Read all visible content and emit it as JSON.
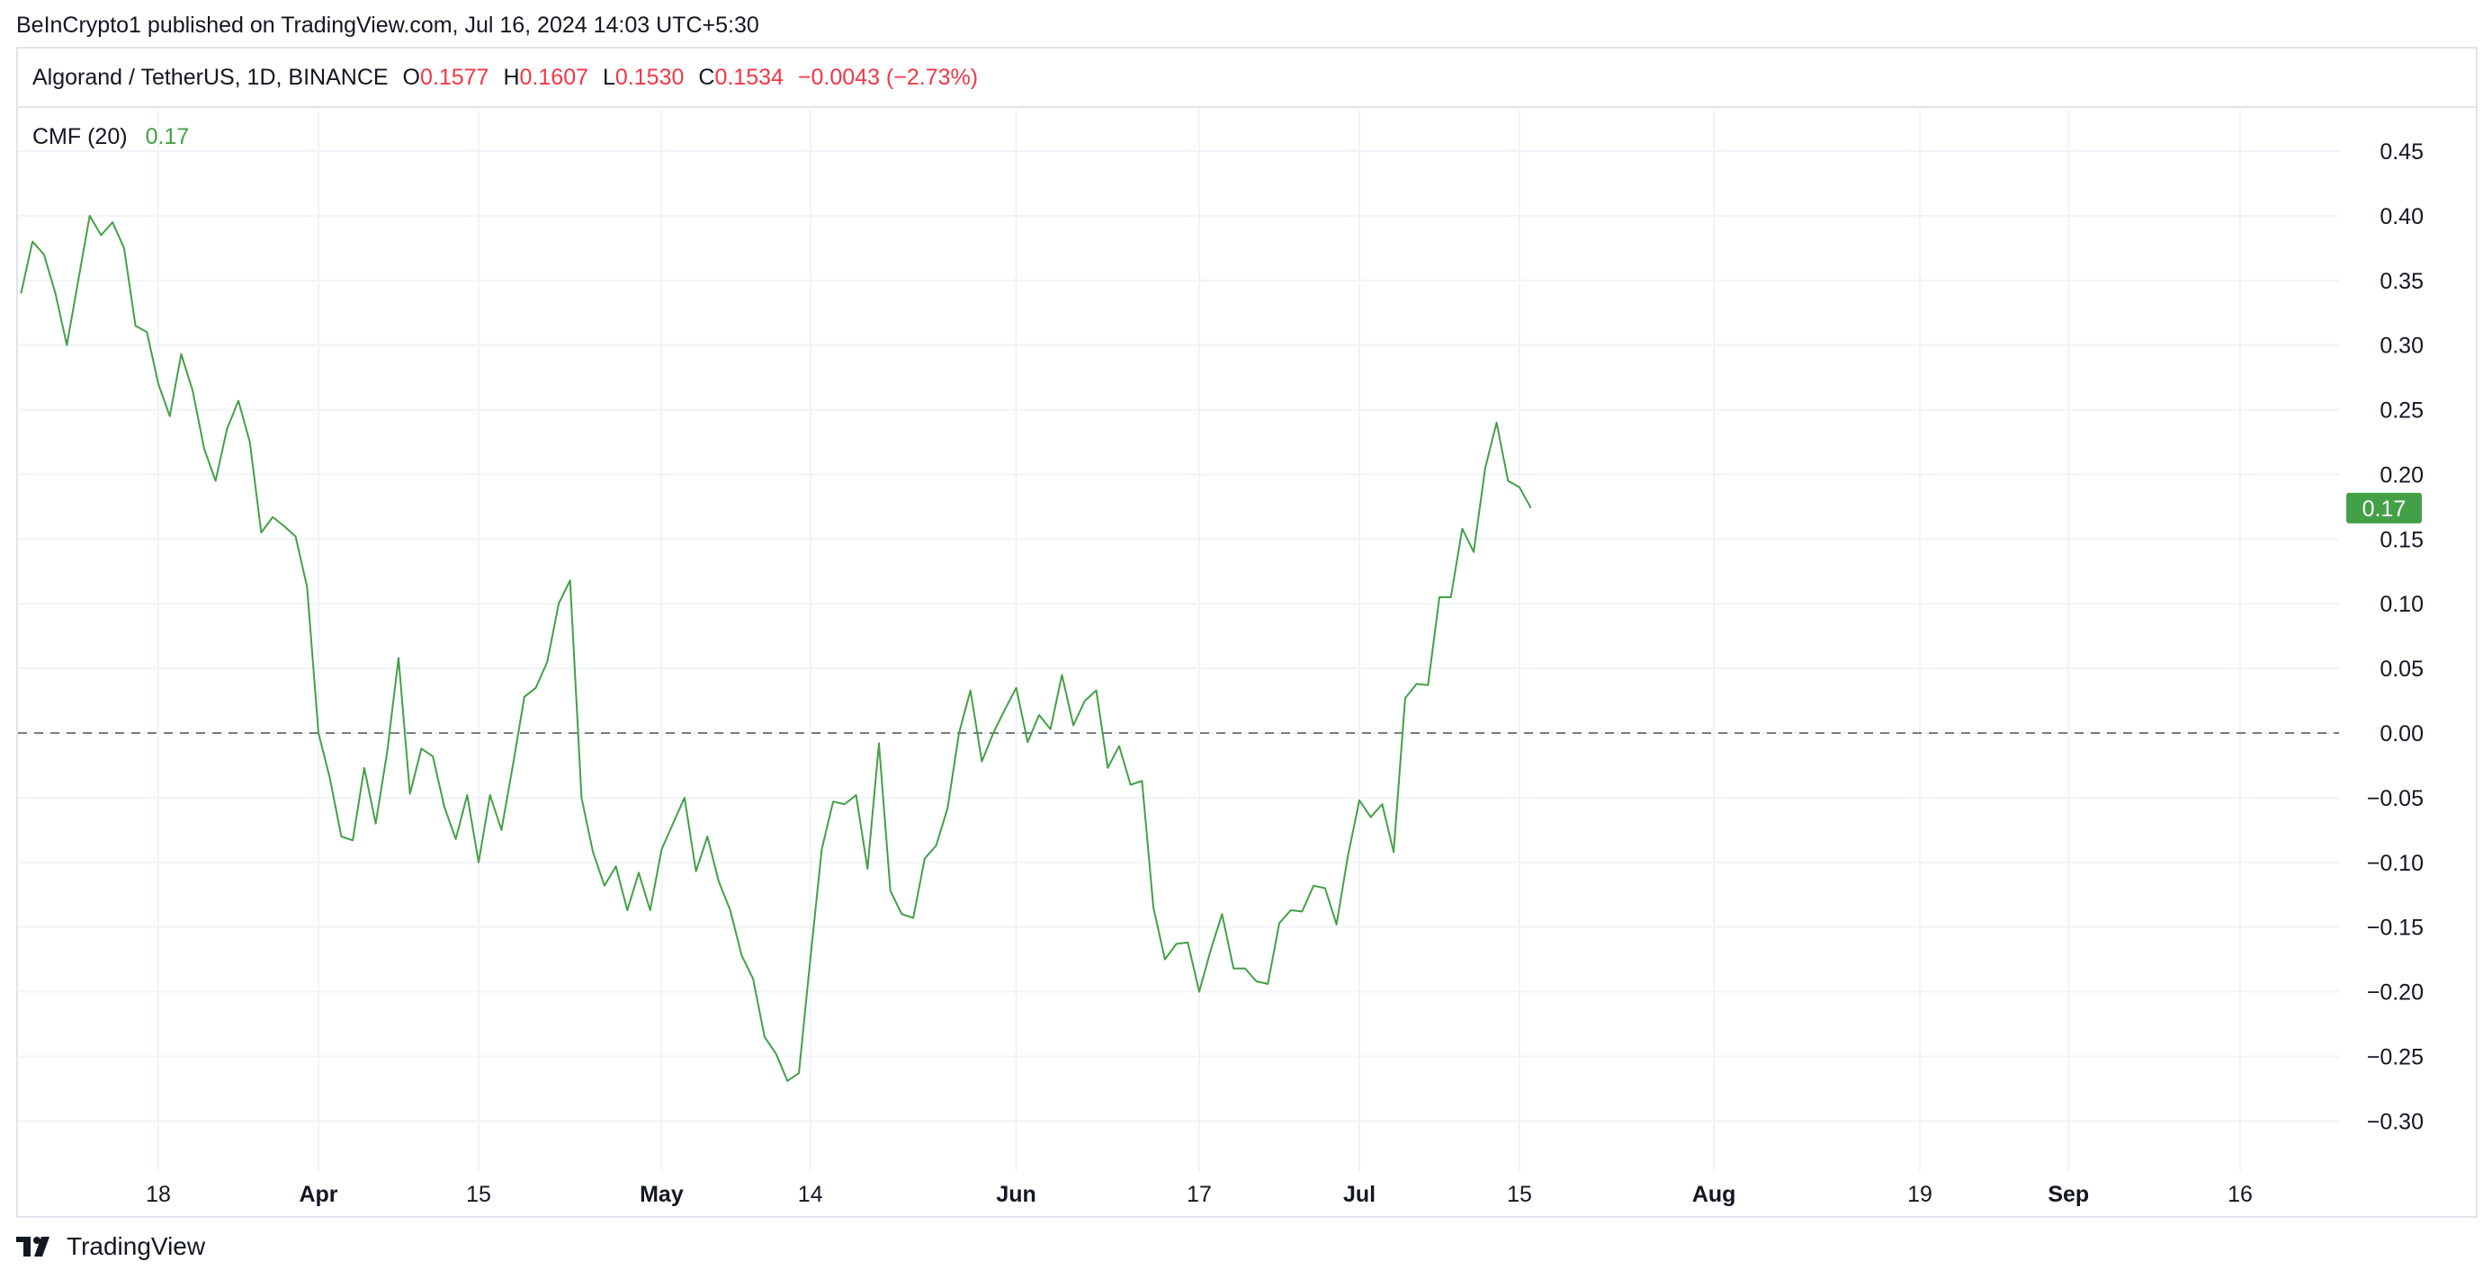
{
  "published": "BeInCrypto1 published on TradingView.com, Jul 16, 2024 14:03 UTC+5:30",
  "header": {
    "symbol": "Algorand / TetherUS, 1D, BINANCE",
    "open_label": "O",
    "open_value": "0.1577",
    "high_label": "H",
    "high_value": "0.1607",
    "low_label": "L",
    "low_value": "0.1530",
    "close_label": "C",
    "close_value": "0.1534",
    "change": "−0.0043 (−2.73%)"
  },
  "indicator": {
    "name": "CMF (20)",
    "value": "0.17"
  },
  "footer": {
    "brand": "TradingView"
  },
  "colors": {
    "line": "#43a047",
    "badge": "#43a047",
    "down": "#f23645",
    "grid": "#f0f3fa",
    "zero": "#787b86"
  },
  "chart_data": {
    "type": "line",
    "title": "CMF (20)",
    "xlabel": "",
    "ylabel": "",
    "ylim": [
      -0.33,
      0.48
    ],
    "grid": true,
    "y_ticks": [
      "0.45",
      "0.40",
      "0.35",
      "0.30",
      "0.25",
      "0.20",
      "0.15",
      "0.10",
      "0.05",
      "0.00",
      "−0.05",
      "−0.10",
      "−0.15",
      "−0.20",
      "−0.25",
      "−0.30"
    ],
    "y_tick_values": [
      0.45,
      0.4,
      0.35,
      0.3,
      0.25,
      0.2,
      0.15,
      0.1,
      0.05,
      0.0,
      -0.05,
      -0.1,
      -0.15,
      -0.2,
      -0.25,
      -0.3
    ],
    "x_ticks": [
      {
        "label": "18",
        "day": 0,
        "bold": false
      },
      {
        "label": "Apr",
        "day": 14,
        "bold": true
      },
      {
        "label": "15",
        "day": 28,
        "bold": false
      },
      {
        "label": "May",
        "day": 44,
        "bold": true
      },
      {
        "label": "14",
        "day": 57,
        "bold": false
      },
      {
        "label": "Jun",
        "day": 75,
        "bold": true
      },
      {
        "label": "17",
        "day": 91,
        "bold": false
      },
      {
        "label": "Jul",
        "day": 105,
        "bold": true
      },
      {
        "label": "15",
        "day": 119,
        "bold": false
      },
      {
        "label": "Aug",
        "day": 136,
        "bold": true
      },
      {
        "label": "19",
        "day": 154,
        "bold": false
      },
      {
        "label": "Sep",
        "day": 167,
        "bold": true
      },
      {
        "label": "16",
        "day": 182,
        "bold": false
      }
    ],
    "zero_line": 0.0,
    "last_value_badge": "0.17",
    "last_value": 0.174,
    "x_start": -12,
    "series": [
      {
        "color": "#43a047",
        "values": [
          0.34,
          0.38,
          0.37,
          0.34,
          0.3,
          0.35,
          0.4,
          0.385,
          0.395,
          0.375,
          0.315,
          0.31,
          0.27,
          0.245,
          0.293,
          0.265,
          0.22,
          0.195,
          0.235,
          0.257,
          0.225,
          0.155,
          0.167,
          0.16,
          0.152,
          0.113,
          0.0,
          -0.035,
          -0.08,
          -0.083,
          -0.027,
          -0.07,
          -0.015,
          0.058,
          -0.047,
          -0.012,
          -0.018,
          -0.057,
          -0.082,
          -0.048,
          -0.1,
          -0.048,
          -0.075,
          -0.025,
          0.028,
          0.035,
          0.055,
          0.1,
          0.118,
          -0.05,
          -0.092,
          -0.118,
          -0.103,
          -0.137,
          -0.108,
          -0.137,
          -0.09,
          -0.07,
          -0.05,
          -0.107,
          -0.08,
          -0.115,
          -0.137,
          -0.172,
          -0.19,
          -0.235,
          -0.248,
          -0.269,
          -0.263,
          -0.175,
          -0.09,
          -0.053,
          -0.055,
          -0.048,
          -0.105,
          -0.008,
          -0.122,
          -0.14,
          -0.143,
          -0.097,
          -0.087,
          -0.058,
          0.0,
          0.033,
          -0.022,
          0.0,
          0.018,
          0.035,
          -0.007,
          0.014,
          0.003,
          0.045,
          0.006,
          0.025,
          0.033,
          -0.027,
          -0.01,
          -0.04,
          -0.037,
          -0.135,
          -0.175,
          -0.163,
          -0.162,
          -0.2,
          -0.168,
          -0.14,
          -0.182,
          -0.182,
          -0.192,
          -0.194,
          -0.147,
          -0.137,
          -0.138,
          -0.118,
          -0.12,
          -0.148,
          -0.095,
          -0.052,
          -0.065,
          -0.055,
          -0.092,
          0.027,
          0.038,
          0.037,
          0.105,
          0.105,
          0.158,
          0.14,
          0.205,
          0.24,
          0.195,
          0.19,
          0.174
        ]
      }
    ]
  }
}
